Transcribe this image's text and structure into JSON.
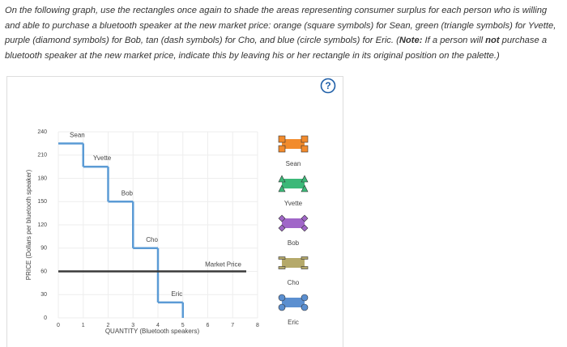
{
  "instructions": [
    "On the following graph, use the rectangles once again to shade the areas representing consumer surplus for each person who is willing and able to purchase a bluetooth speaker at the new market price: orange (square symbols) for Sean, green (triangle symbols) for Yvette, purple (diamond symbols) for Bob, tan (dash symbols) for Cho, and blue (circle symbols) for Eric. (",
    "Note:",
    " If a person will ",
    "not",
    " purchase a bluetooth speaker at the new market price, indicate this by leaving his or her rectangle in its original position on the palette.)"
  ],
  "help_icon": "?",
  "chart_data": {
    "type": "step",
    "x_label": "QUANTITY (Bluetooth speakers)",
    "y_label": "PRICE (Dollars per bluetooth speaker)",
    "xlim": [
      0,
      8
    ],
    "xticks": [
      0,
      1,
      2,
      3,
      4,
      5,
      6,
      7,
      8
    ],
    "ylim": [
      0,
      240
    ],
    "yticks": [
      0,
      30,
      60,
      90,
      120,
      150,
      180,
      210,
      240
    ],
    "grid": true,
    "line_color": "#5b9bd5",
    "buyers": [
      {
        "name": "Sean",
        "value": 225
      },
      {
        "name": "Yvette",
        "value": 195
      },
      {
        "name": "Bob",
        "value": 150
      },
      {
        "name": "Cho",
        "value": 90
      },
      {
        "name": "Eric",
        "value": 20
      }
    ],
    "market_price": {
      "label": "Market Price",
      "value": 60,
      "color": "#3a3a3a"
    },
    "palette": [
      {
        "name": "Sean",
        "color": "#f28b2c",
        "shape": "square"
      },
      {
        "name": "Yvette",
        "color": "#3cb878",
        "shape": "triangle"
      },
      {
        "name": "Bob",
        "color": "#a066c8",
        "shape": "diamond"
      },
      {
        "name": "Cho",
        "color": "#b5a96a",
        "shape": "dash"
      },
      {
        "name": "Eric",
        "color": "#5b8fd0",
        "shape": "circle"
      }
    ]
  }
}
